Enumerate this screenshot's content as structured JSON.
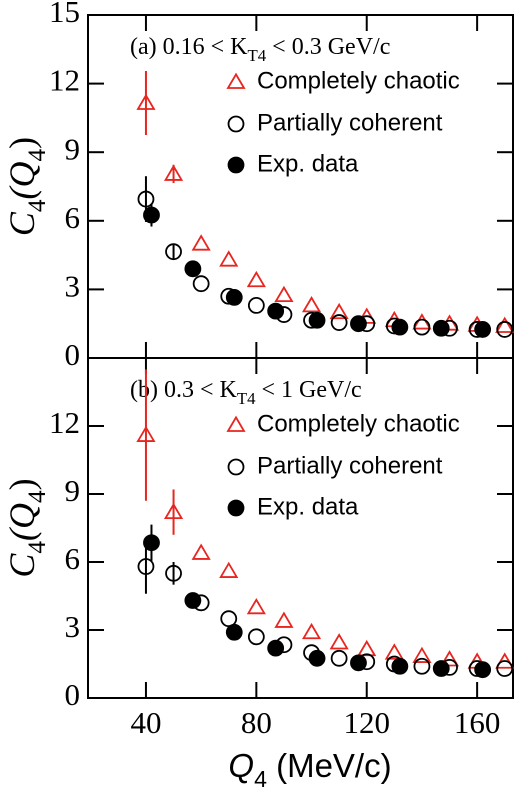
{
  "chart_data": [
    {
      "type": "scatter",
      "panel_label": [
        "(a) 0.16 < K",
        "T4",
        " < 0.3 GeV/c"
      ],
      "ylabel": [
        "C",
        "4",
        "(Q",
        "4",
        ")"
      ],
      "xlim": [
        19,
        173
      ],
      "xticks": [
        40,
        80,
        120,
        160
      ],
      "ylim": [
        0,
        15
      ],
      "yticks": [
        0,
        3,
        6,
        9,
        12,
        15
      ],
      "series": [
        {
          "name": "Completely chaotic",
          "color": "#e8251f",
          "marker": "triangle-open",
          "x": [
            40,
            50,
            60,
            70,
            80,
            90,
            100,
            110,
            120,
            130,
            140,
            150,
            160,
            170
          ],
          "values": [
            11.15,
            8.05,
            5.0,
            4.3,
            3.4,
            2.75,
            2.3,
            2.0,
            1.8,
            1.65,
            1.55,
            1.5,
            1.45,
            1.4
          ],
          "errors": [
            1.4,
            0.4,
            null,
            null,
            null,
            null,
            null,
            null,
            null,
            null,
            null,
            null,
            null,
            null
          ]
        },
        {
          "name": "Partially coherent",
          "color": "#000000",
          "marker": "circle-open",
          "x": [
            40,
            50,
            60,
            70,
            80,
            90,
            100,
            110,
            120,
            130,
            140,
            150,
            160,
            170
          ],
          "values": [
            6.95,
            4.65,
            3.25,
            2.7,
            2.3,
            1.9,
            1.65,
            1.55,
            1.5,
            1.4,
            1.35,
            1.3,
            1.25,
            1.25
          ],
          "errors": [
            1.0,
            0.3,
            null,
            null,
            null,
            null,
            null,
            null,
            null,
            null,
            null,
            null,
            null,
            null
          ]
        },
        {
          "name": "Exp. data",
          "color": "#000000",
          "marker": "circle-filled",
          "x": [
            42,
            57,
            72,
            87,
            102,
            117,
            132,
            147,
            162
          ],
          "values": [
            6.25,
            3.9,
            2.65,
            2.05,
            1.65,
            1.5,
            1.35,
            1.3,
            1.25
          ],
          "errors": [
            0.5,
            null,
            null,
            null,
            null,
            null,
            null,
            null,
            null
          ]
        }
      ]
    },
    {
      "type": "scatter",
      "panel_label": [
        "(b) 0.3 < K",
        "T4",
        " < 1 GeV/c"
      ],
      "ylabel": [
        "C",
        "4",
        "(Q",
        "4",
        ")"
      ],
      "xlabel": [
        "Q",
        "4",
        " (MeV/c)"
      ],
      "xlim": [
        19,
        173
      ],
      "xticks": [
        40,
        80,
        120,
        160
      ],
      "ylim": [
        0,
        15
      ],
      "yticks": [
        0,
        3,
        6,
        9,
        12
      ],
      "series": [
        {
          "name": "Completely chaotic",
          "color": "#e8251f",
          "marker": "triangle-open",
          "x": [
            40,
            50,
            60,
            70,
            80,
            90,
            100,
            110,
            120,
            130,
            140,
            150,
            160,
            170
          ],
          "values": [
            11.6,
            8.2,
            6.4,
            5.6,
            4.0,
            3.4,
            2.9,
            2.45,
            2.15,
            2.0,
            1.85,
            1.7,
            1.6,
            1.6
          ],
          "errors": [
            2.9,
            1.0,
            null,
            null,
            null,
            null,
            null,
            null,
            null,
            null,
            null,
            null,
            null,
            null
          ]
        },
        {
          "name": "Partially coherent",
          "color": "#000000",
          "marker": "circle-open",
          "x": [
            40,
            50,
            60,
            70,
            80,
            90,
            100,
            110,
            120,
            130,
            140,
            150,
            160,
            170
          ],
          "values": [
            5.8,
            5.5,
            4.2,
            3.5,
            2.7,
            2.35,
            2.0,
            1.75,
            1.6,
            1.5,
            1.4,
            1.35,
            1.3,
            1.3
          ],
          "errors": [
            1.2,
            0.5,
            null,
            null,
            null,
            null,
            null,
            null,
            null,
            null,
            null,
            null,
            null,
            null
          ]
        },
        {
          "name": "Exp. data",
          "color": "#000000",
          "marker": "circle-filled",
          "x": [
            42,
            57,
            72,
            87,
            102,
            117,
            132,
            147,
            162
          ],
          "values": [
            6.85,
            4.3,
            2.9,
            2.2,
            1.75,
            1.55,
            1.4,
            1.3,
            1.25
          ],
          "errors": [
            0.8,
            null,
            null,
            null,
            null,
            null,
            null,
            null,
            null
          ]
        }
      ]
    }
  ]
}
